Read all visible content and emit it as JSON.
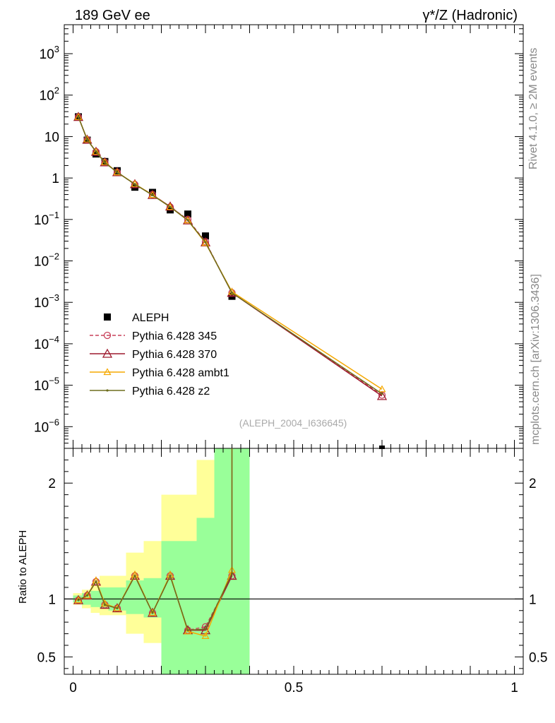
{
  "header": {
    "left_title": "189 GeV ee",
    "right_title": "γ*/Z (Hadronic)"
  },
  "side_text": {
    "rivet": "Rivet 4.1.0, ≥ 2M events",
    "mcplots": "mcplots.cern.ch [arXiv:1306.3436]"
  },
  "watermark": "(ALEPH_2004_I636645)",
  "colors": {
    "data": "#000000",
    "p345": "#c8405a",
    "p370": "#9e1a2e",
    "ambt1": "#f5a800",
    "z2": "#6e6e1e",
    "band_inner": "#99ff99",
    "band_outer": "#ffff99"
  },
  "chart_data": [
    {
      "type": "scatter",
      "panel": "main",
      "yscale": "log",
      "xlim": [
        -0.02,
        1.02
      ],
      "ylim": [
        3e-07,
        5000
      ],
      "yticks": [
        {
          "base": "10",
          "exp": "3"
        },
        {
          "base": "10",
          "exp": "2"
        },
        {
          "base": "10",
          "exp": ""
        },
        {
          "base": "1",
          "exp": ""
        },
        {
          "base": "10",
          "exp": "−1"
        },
        {
          "base": "10",
          "exp": "−2"
        },
        {
          "base": "10",
          "exp": "−3"
        },
        {
          "base": "10",
          "exp": "−4"
        },
        {
          "base": "10",
          "exp": "−5"
        },
        {
          "base": "10",
          "exp": "−6"
        }
      ],
      "x": [
        0.012,
        0.032,
        0.052,
        0.072,
        0.1,
        0.14,
        0.18,
        0.22,
        0.26,
        0.3,
        0.36,
        0.7
      ],
      "series": [
        {
          "name": "ALEPH",
          "key": "data",
          "values": [
            30,
            8.2,
            3.8,
            2.5,
            1.5,
            0.6,
            0.45,
            0.17,
            0.135,
            0.04,
            0.0014,
            2.5e-07
          ]
        },
        {
          "name": "Pythia 6.428 345",
          "key": "p345",
          "values": [
            29.8,
            8.4,
            4.3,
            2.4,
            1.38,
            0.7,
            0.4,
            0.2,
            0.1,
            0.029,
            0.0017,
            5.8e-06
          ]
        },
        {
          "name": "Pythia 6.428 370",
          "key": "p370",
          "values": [
            29.8,
            8.4,
            4.3,
            2.4,
            1.38,
            0.71,
            0.39,
            0.205,
            0.095,
            0.028,
            0.0017,
            5.5e-06
          ]
        },
        {
          "name": "Pythia 6.428 ambt1",
          "key": "ambt1",
          "values": [
            29.6,
            8.5,
            4.3,
            2.4,
            1.37,
            0.72,
            0.39,
            0.2,
            0.095,
            0.027,
            0.0018,
            8e-06
          ]
        },
        {
          "name": "Pythia 6.428 z2",
          "key": "z2",
          "values": [
            29.9,
            8.4,
            4.35,
            2.35,
            1.37,
            0.71,
            0.385,
            0.2,
            0.096,
            0.028,
            0.0017,
            6.2e-06
          ]
        }
      ]
    },
    {
      "type": "line",
      "panel": "ratio",
      "ylabel": "Ratio to ALEPH",
      "xlim": [
        -0.02,
        1.02
      ],
      "ylim": [
        0.35,
        2.3
      ],
      "yticks": [
        "0.5",
        "1",
        "2"
      ],
      "xticks": [
        "0",
        "0.5",
        "1"
      ],
      "reference": 1,
      "bands": [
        {
          "x0": 0.0,
          "x1": 0.02,
          "inner": [
            0.97,
            1.03
          ],
          "outer": [
            0.95,
            1.05
          ]
        },
        {
          "x0": 0.02,
          "x1": 0.04,
          "inner": [
            0.95,
            1.05
          ],
          "outer": [
            0.92,
            1.08
          ]
        },
        {
          "x0": 0.04,
          "x1": 0.06,
          "inner": [
            0.93,
            1.07
          ],
          "outer": [
            0.88,
            1.12
          ]
        },
        {
          "x0": 0.06,
          "x1": 0.08,
          "inner": [
            0.92,
            1.1
          ],
          "outer": [
            0.86,
            1.2
          ]
        },
        {
          "x0": 0.08,
          "x1": 0.12,
          "inner": [
            0.9,
            1.1
          ],
          "outer": [
            0.86,
            1.2
          ]
        },
        {
          "x0": 0.12,
          "x1": 0.16,
          "inner": [
            0.87,
            1.16
          ],
          "outer": [
            0.7,
            1.4
          ]
        },
        {
          "x0": 0.16,
          "x1": 0.2,
          "inner": [
            0.84,
            1.18
          ],
          "outer": [
            0.62,
            1.5
          ]
        },
        {
          "x0": 0.2,
          "x1": 0.24,
          "inner": [
            0.35,
            1.5
          ],
          "outer": [
            0.35,
            1.9
          ]
        },
        {
          "x0": 0.24,
          "x1": 0.28,
          "inner": [
            0.35,
            1.5
          ],
          "outer": [
            0.35,
            1.9
          ]
        },
        {
          "x0": 0.28,
          "x1": 0.32,
          "inner": [
            0.35,
            1.7
          ],
          "outer": [
            0.35,
            2.2
          ]
        },
        {
          "x0": 0.32,
          "x1": 0.4,
          "inner": [
            0.35,
            2.3
          ],
          "outer": [
            0.35,
            2.3
          ]
        }
      ],
      "x": [
        0.012,
        0.032,
        0.052,
        0.072,
        0.1,
        0.14,
        0.18,
        0.22,
        0.26,
        0.3,
        0.36
      ],
      "series": [
        {
          "name": "Pythia 6.428 345",
          "key": "p345",
          "values": [
            0.99,
            1.03,
            1.15,
            0.95,
            0.92,
            1.2,
            0.88,
            1.2,
            0.73,
            0.76,
            1.2
          ]
        },
        {
          "name": "Pythia 6.428 370",
          "key": "p370",
          "values": [
            0.99,
            1.03,
            1.15,
            0.95,
            0.92,
            1.2,
            0.88,
            1.2,
            0.73,
            0.73,
            1.2
          ]
        },
        {
          "name": "Pythia 6.428 ambt1",
          "key": "ambt1",
          "values": [
            0.99,
            1.03,
            1.16,
            0.96,
            0.92,
            1.21,
            0.88,
            1.21,
            0.72,
            0.68,
            1.25
          ]
        },
        {
          "name": "Pythia 6.428 z2",
          "key": "z2",
          "values": [
            0.99,
            1.03,
            1.15,
            0.95,
            0.92,
            1.2,
            0.88,
            1.2,
            0.73,
            0.74,
            1.22
          ]
        }
      ]
    }
  ]
}
